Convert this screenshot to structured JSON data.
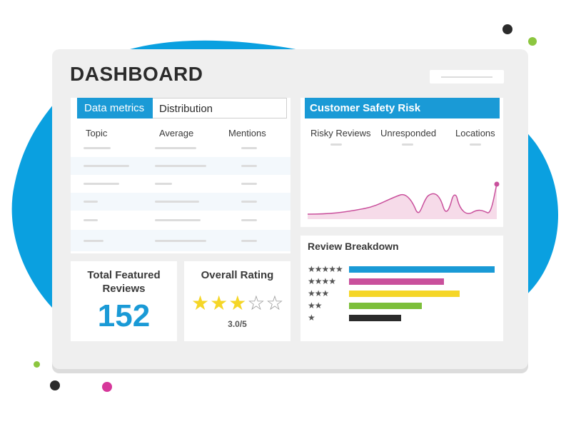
{
  "app": {
    "title": "DASHBOARD"
  },
  "tabs": [
    {
      "label": "Data metrics",
      "active": true
    },
    {
      "label": "Distribution",
      "active": false
    }
  ],
  "data_table": {
    "columns": [
      "Topic",
      "Average",
      "Mentions"
    ]
  },
  "safety": {
    "title": "Customer Safety Risk",
    "columns": [
      "Risky Reviews",
      "Unresponded",
      "Locations"
    ]
  },
  "kpi_reviews": {
    "label": "Total Featured Reviews",
    "label_line1": "Total Featured",
    "label_line2": "Reviews",
    "value": "152"
  },
  "kpi_rating": {
    "label": "Overall Rating",
    "value_text": "3.0/5",
    "stars_filled": 3,
    "stars_total": 5
  },
  "breakdown": {
    "title": "Review Breakdown",
    "rows": [
      {
        "stars": "★★★★★",
        "fraction": 1.0,
        "color": "#1a9ad6"
      },
      {
        "stars": "★★★★",
        "fraction": 0.65,
        "color": "#c9509c"
      },
      {
        "stars": "★★★",
        "fraction": 0.76,
        "color": "#f5d627"
      },
      {
        "stars": "★★",
        "fraction": 0.5,
        "color": "#7cbf3a"
      },
      {
        "stars": "★",
        "fraction": 0.36,
        "color": "#2b2b2b"
      }
    ]
  },
  "colors": {
    "accent": "#1a9ad6",
    "blob": "#0aa0e0",
    "pink": "#d6379a",
    "green": "#8cc63f",
    "dark": "#2b2b2b"
  }
}
